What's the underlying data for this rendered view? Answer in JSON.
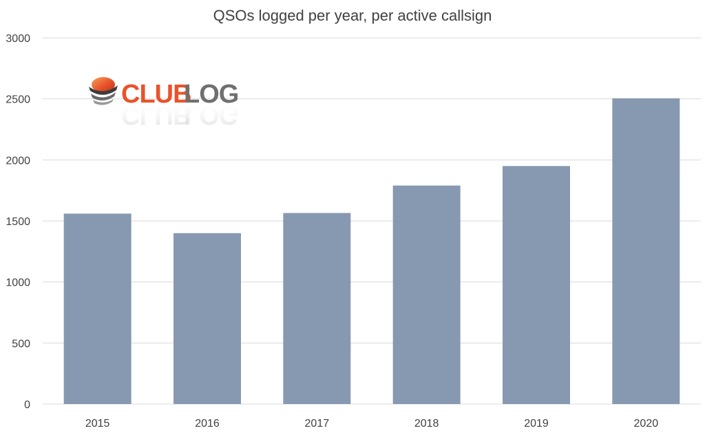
{
  "chart_data": {
    "type": "bar",
    "title": "QSOs logged per year, per active callsign",
    "xlabel": "",
    "ylabel": "",
    "categories": [
      "2015",
      "2016",
      "2017",
      "2018",
      "2019",
      "2020"
    ],
    "values": [
      1560,
      1400,
      1565,
      1790,
      1950,
      2505
    ],
    "ylim": [
      0,
      3000
    ],
    "yticks": [
      0,
      500,
      1000,
      1500,
      2000,
      2500,
      3000
    ],
    "grid": true,
    "legend": "none",
    "bar_color": "#8799b0",
    "grid_color": "#d9d9d9"
  },
  "logo": {
    "part1": "CLUB",
    "part2": "LOG",
    "color1": "#e8532b",
    "color2": "#6f6f6f"
  }
}
